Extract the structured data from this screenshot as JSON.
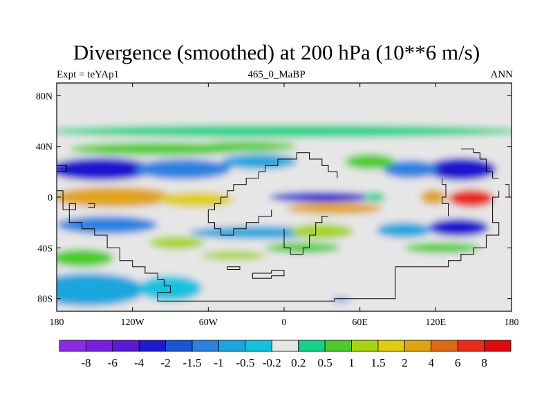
{
  "chart_data": {
    "type": "heatmap",
    "title": "Divergence (smoothed) at 200 hPa (10**6 m/s)",
    "subtitle_left": "Expt = teYAp1",
    "subtitle_center": "465_0_MaBP",
    "subtitle_right": "ANN",
    "x_range": [
      -180,
      180
    ],
    "y_range": [
      -90,
      90
    ],
    "x_ticks": [
      {
        "value": -180,
        "label": "180"
      },
      {
        "value": -120,
        "label": "120W"
      },
      {
        "value": -60,
        "label": "60W"
      },
      {
        "value": 0,
        "label": "0"
      },
      {
        "value": 60,
        "label": "60E"
      },
      {
        "value": 120,
        "label": "120E"
      },
      {
        "value": 180,
        "label": "180"
      }
    ],
    "y_ticks": [
      {
        "value": 80,
        "label": "80N"
      },
      {
        "value": 40,
        "label": "40N"
      },
      {
        "value": 0,
        "label": "0"
      },
      {
        "value": -40,
        "label": "40S"
      },
      {
        "value": -80,
        "label": "80S"
      }
    ],
    "levels": [
      "-8",
      "-6",
      "-4",
      "-2",
      "-1.5",
      "-1",
      "-0.5",
      "-0.2",
      "0.2",
      "0.5",
      "1",
      "1.5",
      "2",
      "4",
      "6",
      "8"
    ],
    "colors": [
      "#8a2be2",
      "#7a1fe0",
      "#5a1ad8",
      "#1f18d0",
      "#1a55d8",
      "#2a82e0",
      "#1aa6de",
      "#12c2e0",
      "#e6e6e6",
      "#14d28a",
      "#4ccc28",
      "#a6d412",
      "#e0cc0c",
      "#e0a412",
      "#e06a14",
      "#e82c1a",
      "#e00a0a"
    ],
    "features": [
      {
        "lon": 0,
        "lat": 52,
        "dlon": 190,
        "dlat": 5,
        "value": 0.4
      },
      {
        "lon": -100,
        "lat": 38,
        "dlon": 70,
        "dlat": 5,
        "value": 0.9
      },
      {
        "lon": -30,
        "lat": 40,
        "dlon": 40,
        "dlat": 4,
        "value": 0.9
      },
      {
        "lon": -145,
        "lat": 22,
        "dlon": 42,
        "dlat": 9,
        "value": -2.2
      },
      {
        "lon": -80,
        "lat": 22,
        "dlon": 38,
        "dlat": 8,
        "value": -1.1
      },
      {
        "lon": -20,
        "lat": 28,
        "dlon": 30,
        "dlat": 6,
        "value": -1.0
      },
      {
        "lon": 140,
        "lat": 22,
        "dlon": 28,
        "dlat": 9,
        "value": -3.0
      },
      {
        "lon": 100,
        "lat": 22,
        "dlon": 22,
        "dlat": 7,
        "value": -1.2
      },
      {
        "lon": 68,
        "lat": 28,
        "dlon": 20,
        "dlat": 6,
        "value": 0.9
      },
      {
        "lon": -135,
        "lat": 0,
        "dlon": 48,
        "dlat": 8,
        "value": 3.0
      },
      {
        "lon": -70,
        "lat": -2,
        "dlon": 30,
        "dlat": 6,
        "value": 1.6
      },
      {
        "lon": 30,
        "lat": 0,
        "dlon": 42,
        "dlat": 4,
        "value": -3.2
      },
      {
        "lon": 40,
        "lat": -9,
        "dlon": 38,
        "dlat": 4.5,
        "value": 2.6
      },
      {
        "lon": 148,
        "lat": -1,
        "dlon": 18,
        "dlat": 7,
        "value": 6.4
      },
      {
        "lon": 118,
        "lat": 0,
        "dlon": 10,
        "dlat": 6,
        "value": 2.2
      },
      {
        "lon": 72,
        "lat": 0,
        "dlon": 8,
        "dlat": 4,
        "value": 0.25
      },
      {
        "lon": -140,
        "lat": -22,
        "dlon": 40,
        "dlat": 7,
        "value": -1.5
      },
      {
        "lon": -20,
        "lat": -28,
        "dlon": 55,
        "dlat": 5,
        "value": -1.0
      },
      {
        "lon": 30,
        "lat": -27,
        "dlon": 25,
        "dlat": 6,
        "value": 1.2
      },
      {
        "lon": 138,
        "lat": -24,
        "dlon": 24,
        "dlat": 7,
        "value": -3.0
      },
      {
        "lon": 95,
        "lat": -26,
        "dlon": 22,
        "dlat": 6,
        "value": -1.0
      },
      {
        "lon": -85,
        "lat": -36,
        "dlon": 22,
        "dlat": 5,
        "value": 1.2
      },
      {
        "lon": 15,
        "lat": -40,
        "dlon": 30,
        "dlat": 4,
        "value": 0.9
      },
      {
        "lon": 125,
        "lat": -40,
        "dlon": 30,
        "dlat": 4,
        "value": 0.9
      },
      {
        "lon": -40,
        "lat": -46,
        "dlon": 25,
        "dlat": 3.5,
        "value": 1.0
      },
      {
        "lon": -160,
        "lat": -48,
        "dlon": 25,
        "dlat": 7,
        "value": 0.7
      },
      {
        "lon": -155,
        "lat": -73,
        "dlon": 45,
        "dlat": 13,
        "value": -0.6
      },
      {
        "lon": -90,
        "lat": -72,
        "dlon": 25,
        "dlat": 10,
        "value": -0.4
      },
      {
        "lon": 45,
        "lat": -81,
        "dlon": 8,
        "dlat": 1.6,
        "value": -1.2
      }
    ]
  }
}
